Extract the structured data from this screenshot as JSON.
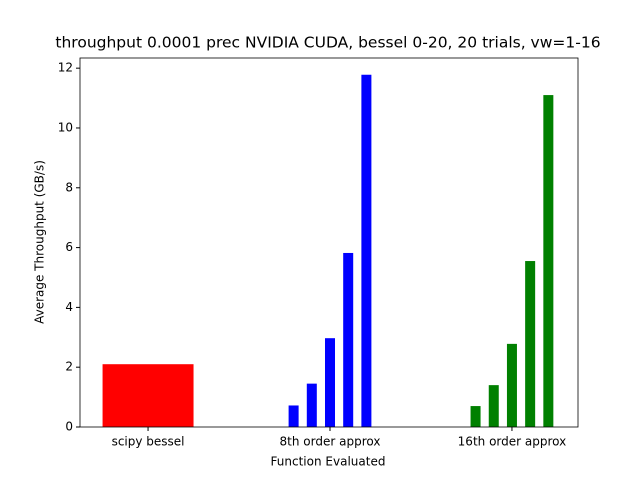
{
  "chart_data": {
    "type": "grouped-bar",
    "title": "throughput 0.0001 prec NVIDIA CUDA, bessel 0-20, 20 trials, vw=1-16",
    "x_label": "Function Evaluated",
    "y_label": "Average Throughput (GB/s)",
    "categories": [
      "scipy bessel",
      "8th order approx",
      "16th order approx"
    ],
    "values": [
      [
        2.1
      ],
      [
        0.72,
        1.45,
        2.97,
        5.82,
        11.78
      ],
      [
        0.7,
        1.4,
        2.78,
        5.55,
        11.1
      ]
    ],
    "colors": [
      "#ff0000",
      "#0000ff",
      "#008000"
    ],
    "ylim": [
      0,
      12.34
    ],
    "yticks": [
      0,
      2,
      4,
      6,
      8,
      10,
      12
    ],
    "grid": false
  }
}
